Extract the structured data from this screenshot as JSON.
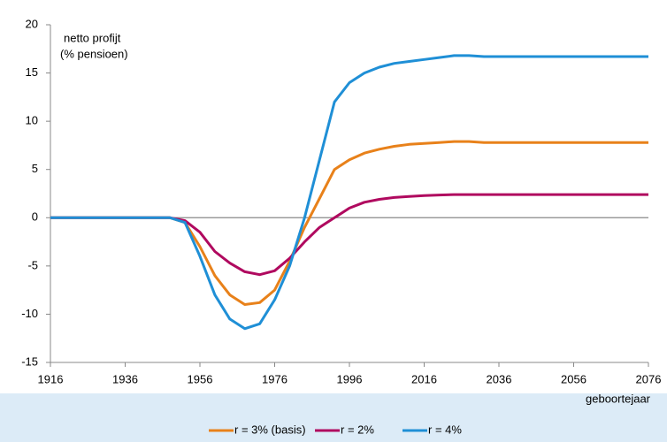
{
  "chart_data": {
    "type": "line",
    "ylabel": [
      "netto profijt",
      "(% pensioen)"
    ],
    "xlabel": "geboortejaar",
    "x": [
      1916,
      1920,
      1924,
      1928,
      1932,
      1936,
      1940,
      1944,
      1948,
      1952,
      1956,
      1960,
      1964,
      1968,
      1972,
      1976,
      1980,
      1984,
      1988,
      1992,
      1996,
      2000,
      2004,
      2008,
      2012,
      2016,
      2020,
      2024,
      2028,
      2032,
      2036,
      2040,
      2044,
      2048,
      2052,
      2056,
      2060,
      2064,
      2068,
      2072,
      2076
    ],
    "series": [
      {
        "name": "r = 3% (basis)",
        "color": "#e8811a",
        "values": [
          0,
          0,
          0,
          0,
          0,
          0,
          0,
          0,
          0,
          -0.5,
          -3,
          -6,
          -8,
          -9,
          -8.8,
          -7.5,
          -4.5,
          -1,
          2,
          5,
          6,
          6.7,
          7.1,
          7.4,
          7.6,
          7.7,
          7.8,
          7.9,
          7.9,
          7.8,
          7.8,
          7.8,
          7.8,
          7.8,
          7.8,
          7.8,
          7.8,
          7.8,
          7.8,
          7.8,
          7.8
        ]
      },
      {
        "name": "r = 2%",
        "color": "#b0095f",
        "values": [
          0,
          0,
          0,
          0,
          0,
          0,
          0,
          0,
          0,
          -0.3,
          -1.5,
          -3.5,
          -4.7,
          -5.6,
          -5.9,
          -5.5,
          -4.2,
          -2.5,
          -1,
          0,
          1,
          1.6,
          1.9,
          2.1,
          2.2,
          2.3,
          2.35,
          2.4,
          2.4,
          2.4,
          2.4,
          2.4,
          2.4,
          2.4,
          2.4,
          2.4,
          2.4,
          2.4,
          2.4,
          2.4,
          2.4
        ]
      },
      {
        "name": "r = 4%",
        "color": "#1f8fd6",
        "values": [
          0,
          0,
          0,
          0,
          0,
          0,
          0,
          0,
          0,
          -0.5,
          -4,
          -8,
          -10.5,
          -11.5,
          -11,
          -8.5,
          -5,
          0,
          6,
          12,
          14,
          15,
          15.6,
          16,
          16.2,
          16.4,
          16.6,
          16.8,
          16.8,
          16.7,
          16.7,
          16.7,
          16.7,
          16.7,
          16.7,
          16.7,
          16.7,
          16.7,
          16.7,
          16.7,
          16.7
        ]
      }
    ],
    "xlim": [
      1916,
      2076
    ],
    "xticks": [
      1916,
      1936,
      1956,
      1976,
      1996,
      2016,
      2036,
      2056,
      2076
    ],
    "ylim": [
      -15,
      20
    ],
    "yticks": [
      -15,
      -10,
      -5,
      0,
      5,
      10,
      15,
      20
    ],
    "legend": "bottom"
  }
}
